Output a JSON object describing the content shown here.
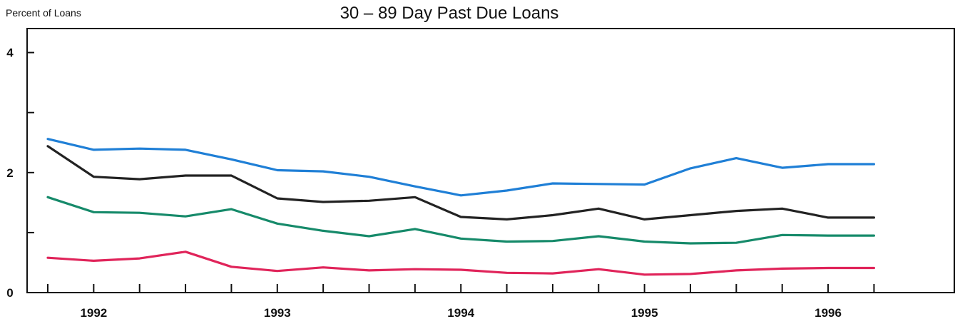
{
  "chart_data": {
    "type": "line",
    "title": "30 – 89 Day Past Due Loans",
    "ylabel": "Percent of Loans",
    "xlabel": "",
    "ylim": [
      0,
      4.4
    ],
    "xlim": [
      1991.75,
      1996.8
    ],
    "y_ticks": [
      0,
      1,
      2,
      3,
      4
    ],
    "y_tick_labels": [
      {
        "value": 0,
        "label": "0"
      },
      {
        "value": 2,
        "label": "2"
      },
      {
        "value": 4,
        "label": "4"
      }
    ],
    "x_tick_labels": [
      {
        "value": 1992,
        "label": "1992"
      },
      {
        "value": 1993,
        "label": "1993"
      },
      {
        "value": 1994,
        "label": "1994"
      },
      {
        "value": 1995,
        "label": "1995"
      },
      {
        "value": 1996,
        "label": "1996"
      }
    ],
    "x_minor_ticks": [
      1991.75,
      1992.0,
      1992.25,
      1992.5,
      1992.75,
      1993.0,
      1993.25,
      1993.5,
      1993.75,
      1994.0,
      1994.25,
      1994.5,
      1994.75,
      1995.0,
      1995.25,
      1995.5,
      1995.75,
      1996.0,
      1996.25
    ],
    "x": [
      1991.75,
      1992.0,
      1992.25,
      1992.5,
      1992.75,
      1993.0,
      1993.25,
      1993.5,
      1993.75,
      1994.0,
      1994.25,
      1994.5,
      1994.75,
      1995.0,
      1995.25,
      1995.5,
      1995.75,
      1996.0,
      1996.25
    ],
    "grid": false,
    "series": [
      {
        "color": "#1f7fd6",
        "values": [
          2.56,
          2.38,
          2.4,
          2.38,
          2.22,
          2.04,
          2.02,
          1.93,
          1.77,
          1.62,
          1.7,
          1.82,
          1.81,
          1.8,
          2.07,
          2.24,
          2.08,
          2.14,
          2.14
        ]
      },
      {
        "color": "#222222",
        "values": [
          2.44,
          1.93,
          1.89,
          1.95,
          1.95,
          1.57,
          1.51,
          1.53,
          1.59,
          1.26,
          1.22,
          1.29,
          1.4,
          1.22,
          1.29,
          1.36,
          1.4,
          1.25,
          1.25
        ]
      },
      {
        "color": "#168a6a",
        "values": [
          1.59,
          1.34,
          1.33,
          1.27,
          1.39,
          1.15,
          1.03,
          0.94,
          1.06,
          0.9,
          0.85,
          0.86,
          0.94,
          0.85,
          0.82,
          0.83,
          0.96,
          0.95,
          0.95
        ]
      },
      {
        "color": "#e0245a",
        "values": [
          0.58,
          0.53,
          0.57,
          0.68,
          0.43,
          0.36,
          0.42,
          0.37,
          0.39,
          0.38,
          0.33,
          0.32,
          0.39,
          0.3,
          0.31,
          0.37,
          0.4,
          0.41,
          0.41
        ]
      }
    ]
  }
}
